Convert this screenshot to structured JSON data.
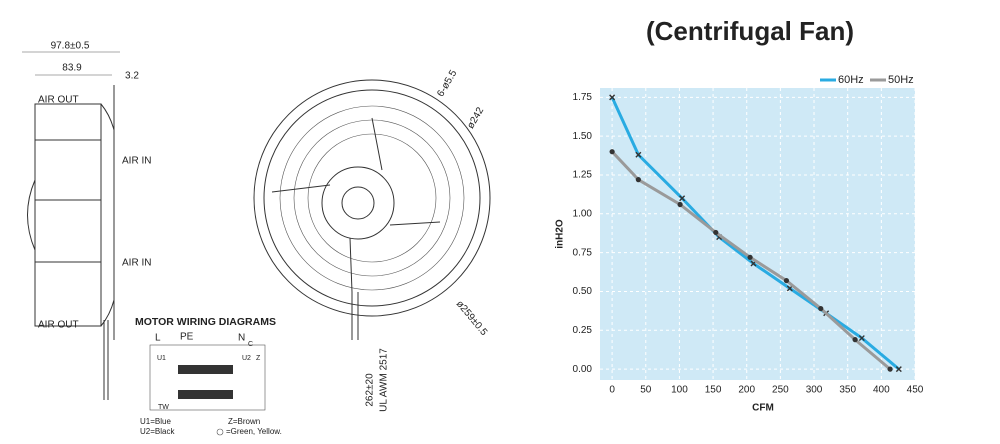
{
  "drawing": {
    "side_view": {
      "overall_width": "97.8±0.5",
      "body_width": "83.9",
      "offset": "3.2",
      "air_out_top": "AIR OUT",
      "air_in_top": "AIR IN",
      "air_in_bottom": "AIR IN",
      "air_out_bottom": "AIR OUT"
    },
    "front_view": {
      "holes": "6-ø5.5",
      "inner_diameter": "ø242",
      "outer_diameter": "ø259±0.5",
      "lead_length": "262±20",
      "cable": "UL AWM 2517"
    },
    "wiring": {
      "title": "MOTOR WIRING DIAGRAMS",
      "terminals": [
        "L",
        "PE",
        "N",
        "C",
        "U1",
        "U2",
        "Z",
        "TW"
      ],
      "legend": [
        "U1=Blue",
        "U2=Black",
        "Z=Brown",
        "=Green, Yellow."
      ]
    }
  },
  "chart_data": {
    "type": "line",
    "title": "(Centrifugal Fan)",
    "x_label": "CFM",
    "y_label": "inH2O",
    "xlim": [
      -18,
      450
    ],
    "ylim": [
      -0.07,
      1.81
    ],
    "xticks": [
      0,
      50,
      100,
      150,
      200,
      250,
      300,
      350,
      400,
      450
    ],
    "yticks": [
      {
        "value": 0,
        "label": "0.00"
      },
      {
        "value": 0.25,
        "label": "0.25"
      },
      {
        "value": 0.5,
        "label": "0.50"
      },
      {
        "value": 0.75,
        "label": "0.75"
      },
      {
        "value": 1,
        "label": "1.00"
      },
      {
        "value": 1.25,
        "label": "1.25"
      },
      {
        "value": 1.5,
        "label": "1.50"
      },
      {
        "value": 1.75,
        "label": "1.75"
      }
    ],
    "grid": true,
    "background": "#cfe9f6",
    "legend": "top-right",
    "series": [
      {
        "name": "60Hz",
        "color": "#29abe2",
        "marker": "x",
        "x": [
          0,
          39,
          104,
          159,
          210,
          264,
          318,
          371,
          426
        ],
        "values": [
          1.75,
          1.38,
          1.1,
          0.85,
          0.68,
          0.52,
          0.36,
          0.2,
          0
        ]
      },
      {
        "name": "50Hz",
        "color": "#9a9a9a",
        "marker": "dot",
        "x": [
          0,
          39,
          101,
          154,
          205,
          259,
          310,
          361,
          413
        ],
        "values": [
          1.4,
          1.22,
          1.06,
          0.88,
          0.72,
          0.57,
          0.39,
          0.19,
          0
        ]
      }
    ]
  }
}
